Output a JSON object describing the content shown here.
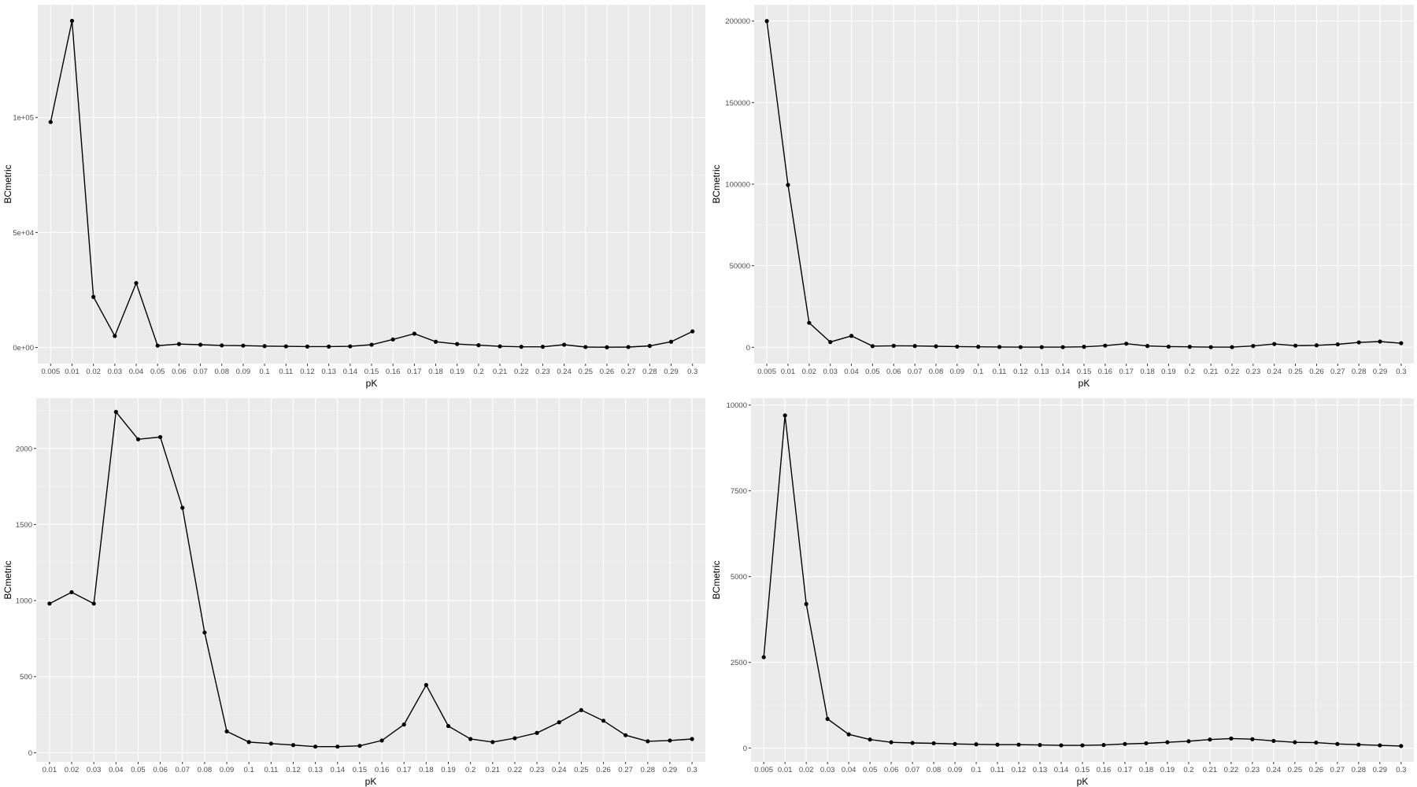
{
  "chart_data": [
    {
      "type": "line",
      "xlabel": "pK",
      "ylabel": "BCmetric",
      "categories": [
        "0.005",
        "0.01",
        "0.02",
        "0.03",
        "0.04",
        "0.05",
        "0.06",
        "0.07",
        "0.08",
        "0.09",
        "0.1",
        "0.11",
        "0.12",
        "0.13",
        "0.14",
        "0.15",
        "0.16",
        "0.17",
        "0.18",
        "0.19",
        "0.2",
        "0.21",
        "0.22",
        "0.23",
        "0.24",
        "0.25",
        "0.26",
        "0.27",
        "0.28",
        "0.29",
        "0.3"
      ],
      "values": [
        98000,
        142000,
        22000,
        5000,
        28000,
        800,
        1500,
        1200,
        900,
        800,
        600,
        500,
        400,
        400,
        500,
        1200,
        3500,
        6000,
        2500,
        1500,
        1000,
        500,
        300,
        300,
        1200,
        200,
        100,
        200,
        700,
        2500,
        7000
      ],
      "ylim": [
        -7000,
        149000
      ],
      "yticks": [
        0,
        50000,
        100000
      ],
      "ytick_labels": [
        "0e+00",
        "5e+04",
        "1e+05"
      ],
      "grid": true
    },
    {
      "type": "line",
      "xlabel": "pK",
      "ylabel": "BCmetric",
      "categories": [
        "0.005",
        "0.01",
        "0.02",
        "0.03",
        "0.04",
        "0.05",
        "0.06",
        "0.07",
        "0.08",
        "0.09",
        "0.1",
        "0.11",
        "0.12",
        "0.13",
        "0.14",
        "0.15",
        "0.16",
        "0.17",
        "0.18",
        "0.19",
        "0.2",
        "0.21",
        "0.22",
        "0.23",
        "0.24",
        "0.25",
        "0.26",
        "0.27",
        "0.28",
        "0.29",
        "0.3"
      ],
      "values": [
        200000,
        99500,
        15000,
        3200,
        7000,
        700,
        900,
        800,
        600,
        400,
        300,
        200,
        100,
        100,
        100,
        300,
        1000,
        2200,
        800,
        400,
        300,
        100,
        100,
        800,
        2000,
        1000,
        1200,
        1800,
        3000,
        3500,
        2500
      ],
      "ylim": [
        -10000,
        210000
      ],
      "yticks": [
        0,
        50000,
        100000,
        150000,
        200000
      ],
      "ytick_labels": [
        "0",
        "50000",
        "100000",
        "150000",
        "200000"
      ],
      "grid": true
    },
    {
      "type": "line",
      "xlabel": "pK",
      "ylabel": "BCmetric",
      "categories": [
        "0.01",
        "0.02",
        "0.03",
        "0.04",
        "0.05",
        "0.06",
        "0.07",
        "0.08",
        "0.09",
        "0.1",
        "0.11",
        "0.12",
        "0.13",
        "0.14",
        "0.15",
        "0.16",
        "0.17",
        "0.18",
        "0.19",
        "0.2",
        "0.21",
        "0.22",
        "0.23",
        "0.24",
        "0.25",
        "0.26",
        "0.27",
        "0.28",
        "0.29",
        "0.3"
      ],
      "values": [
        980,
        1055,
        980,
        2240,
        2060,
        2075,
        1610,
        790,
        140,
        70,
        60,
        50,
        40,
        40,
        45,
        80,
        185,
        445,
        175,
        90,
        70,
        95,
        130,
        200,
        280,
        210,
        115,
        75,
        80,
        90
      ],
      "ylim": [
        -60,
        2330
      ],
      "yticks": [
        0,
        500,
        1000,
        1500,
        2000
      ],
      "ytick_labels": [
        "0",
        "500",
        "1000",
        "1500",
        "2000"
      ],
      "grid": true
    },
    {
      "type": "line",
      "xlabel": "pK",
      "ylabel": "BCmetric",
      "categories": [
        "0.005",
        "0.01",
        "0.02",
        "0.03",
        "0.04",
        "0.05",
        "0.06",
        "0.07",
        "0.08",
        "0.09",
        "0.1",
        "0.11",
        "0.12",
        "0.13",
        "0.14",
        "0.15",
        "0.16",
        "0.17",
        "0.18",
        "0.19",
        "0.2",
        "0.21",
        "0.22",
        "0.23",
        "0.24",
        "0.25",
        "0.26",
        "0.27",
        "0.28",
        "0.29",
        "0.3"
      ],
      "values": [
        2650,
        9700,
        4200,
        850,
        400,
        250,
        170,
        150,
        140,
        120,
        110,
        100,
        100,
        90,
        80,
        80,
        90,
        120,
        140,
        170,
        200,
        250,
        280,
        260,
        210,
        170,
        160,
        120,
        100,
        80,
        60
      ],
      "ylim": [
        -400,
        10200
      ],
      "yticks": [
        0,
        2500,
        5000,
        7500,
        10000
      ],
      "ytick_labels": [
        "0",
        "2500",
        "5000",
        "7500",
        "10000"
      ],
      "grid": true
    }
  ]
}
